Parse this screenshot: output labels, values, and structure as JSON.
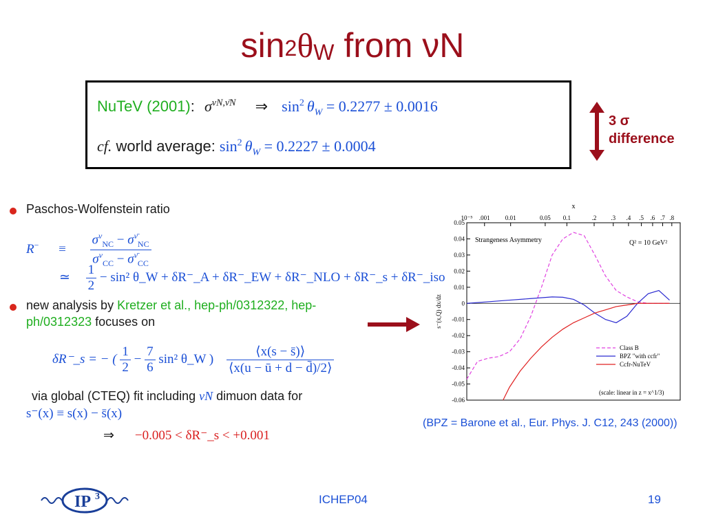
{
  "title": {
    "base": "sin",
    "sup": "2",
    "theta": "θ",
    "sub": "W",
    "rest": " from νN"
  },
  "box": {
    "line1": {
      "nutev": "NuTeV (2001)",
      "colon": ":",
      "sigma": "σ",
      "sigma_sup": "νN,ν̄N",
      "implies": "⇒",
      "sin": "sin",
      "sq": "2",
      "theta": "θ",
      "sub": "W",
      "value": " = 0.2277 ± 0.0016"
    },
    "line2": {
      "cf": "cf.",
      "label": " world average: ",
      "sin": "sin",
      "sq": "2",
      "theta": "θ",
      "sub": "W",
      "value": " = 0.2227 ± 0.0004"
    }
  },
  "difference": {
    "line1": "3 σ",
    "line2": "difference"
  },
  "bullet1": {
    "text": "Paschos-Wolfenstein ratio"
  },
  "eq_R": {
    "lhs": "R",
    "lhs_sup": "−",
    "equiv": "≡",
    "num": "σ",
    "num_sup1": "ν",
    "num_sub1": "NC",
    "minus": " − ",
    "num_sup2": "ν̄",
    "num_sub2": "NC",
    "den_sub1": "CC",
    "den_sub2": "CC",
    "approx": "≃",
    "half_num": "1",
    "half_den": "2",
    "tail": " − sin² θ_W + δR⁻_A + δR⁻_EW + δR⁻_NLO + δR⁻_s + δR⁻_iso"
  },
  "bullet2": {
    "pre": "new analysis by ",
    "link1": "Kretzer et al., hep-ph/0312322, hep-",
    "link2": "ph/0312323",
    "post": " focuses on"
  },
  "eq_dR": {
    "lhs": "δR⁻_s = − (",
    "f1n": "1",
    "f1d": "2",
    "mid": " − ",
    "f2n": "7",
    "f2d": "6",
    "tail": " sin² θ_W )",
    "big_num": "⟨x(s − s̄)⟩",
    "big_den": "⟨x(u − ū + d − d̄)/2⟩"
  },
  "via": {
    "text": "via global (CTEQ) fit including ",
    "nuN": "νN",
    "rest": " dimuon data for"
  },
  "sminus": {
    "text": "s⁻(x) ≡ s(x) − s̄(x)"
  },
  "result": {
    "implies": "⇒",
    "text": "−0.005 < δR⁻_s < +0.001"
  },
  "chart_data": {
    "type": "line",
    "title": "Strangeness Asymmetry",
    "annotation": "Q² = 10 GeV²",
    "scale_note": "(scale: linear in z = x^1/3)",
    "xlabel": "x",
    "ylabel": "s⁻(x,Q) dx/dz",
    "x_ticks": [
      "10⁻⁵",
      ".001",
      "0.01",
      "0.05",
      "0.1",
      ".2",
      ".3",
      ".4",
      ".5",
      ".6",
      ".7",
      ".8"
    ],
    "y_ticks": [
      "0.05",
      "0.04",
      "0.03",
      "0.02",
      "0.01",
      "0",
      "-0.01",
      "-0.02",
      "-0.03",
      "-0.04",
      "-0.05",
      "-0.06"
    ],
    "ylim": [
      -0.06,
      0.05
    ],
    "series": [
      {
        "name": "Class B",
        "color": "#e040e0",
        "z": [
          0.0,
          0.05,
          0.1,
          0.15,
          0.2,
          0.25,
          0.3,
          0.35,
          0.4,
          0.45,
          0.5,
          0.55,
          0.6,
          0.65,
          0.7,
          0.75,
          0.8,
          0.85,
          0.9,
          0.95
        ],
        "values": [
          -0.047,
          -0.036,
          -0.034,
          -0.033,
          -0.03,
          -0.022,
          -0.008,
          0.01,
          0.03,
          0.04,
          0.044,
          0.042,
          0.03,
          0.017,
          0.008,
          0.004,
          0.001,
          0.0,
          0.0,
          0.0
        ]
      },
      {
        "name": "BPZ \"with ccfr\"",
        "color": "#2a2ad0",
        "z": [
          0.0,
          0.1,
          0.2,
          0.3,
          0.4,
          0.45,
          0.5,
          0.55,
          0.6,
          0.65,
          0.7,
          0.75,
          0.8,
          0.85,
          0.9,
          0.95
        ],
        "values": [
          0.0,
          0.001,
          0.002,
          0.003,
          0.004,
          0.0038,
          0.0025,
          -0.001,
          -0.006,
          -0.01,
          -0.012,
          -0.008,
          0.0,
          0.006,
          0.008,
          0.002
        ]
      },
      {
        "name": "Ccfr-NuTeV",
        "color": "#e02020",
        "z": [
          0.17,
          0.2,
          0.25,
          0.3,
          0.35,
          0.4,
          0.45,
          0.5,
          0.55,
          0.6,
          0.65,
          0.7,
          0.75,
          0.8,
          0.85,
          0.9,
          0.95
        ],
        "values": [
          -0.06,
          -0.052,
          -0.042,
          -0.034,
          -0.027,
          -0.021,
          -0.016,
          -0.012,
          -0.009,
          -0.006,
          -0.004,
          -0.002,
          -0.001,
          0.0,
          0.0,
          0.0,
          0.0
        ]
      }
    ]
  },
  "citation": {
    "text": "(BPZ = Barone et al., Eur. Phys. J. C12, 243 (2000))"
  },
  "footer": {
    "center": "ICHEP04",
    "page": "19",
    "logo_text": "IP",
    "logo_sup": "3"
  },
  "colors": {
    "title": "#9b0f1b",
    "accent_red": "#d9261c",
    "blue": "#1a4fd6",
    "green": "#1fae1f"
  }
}
